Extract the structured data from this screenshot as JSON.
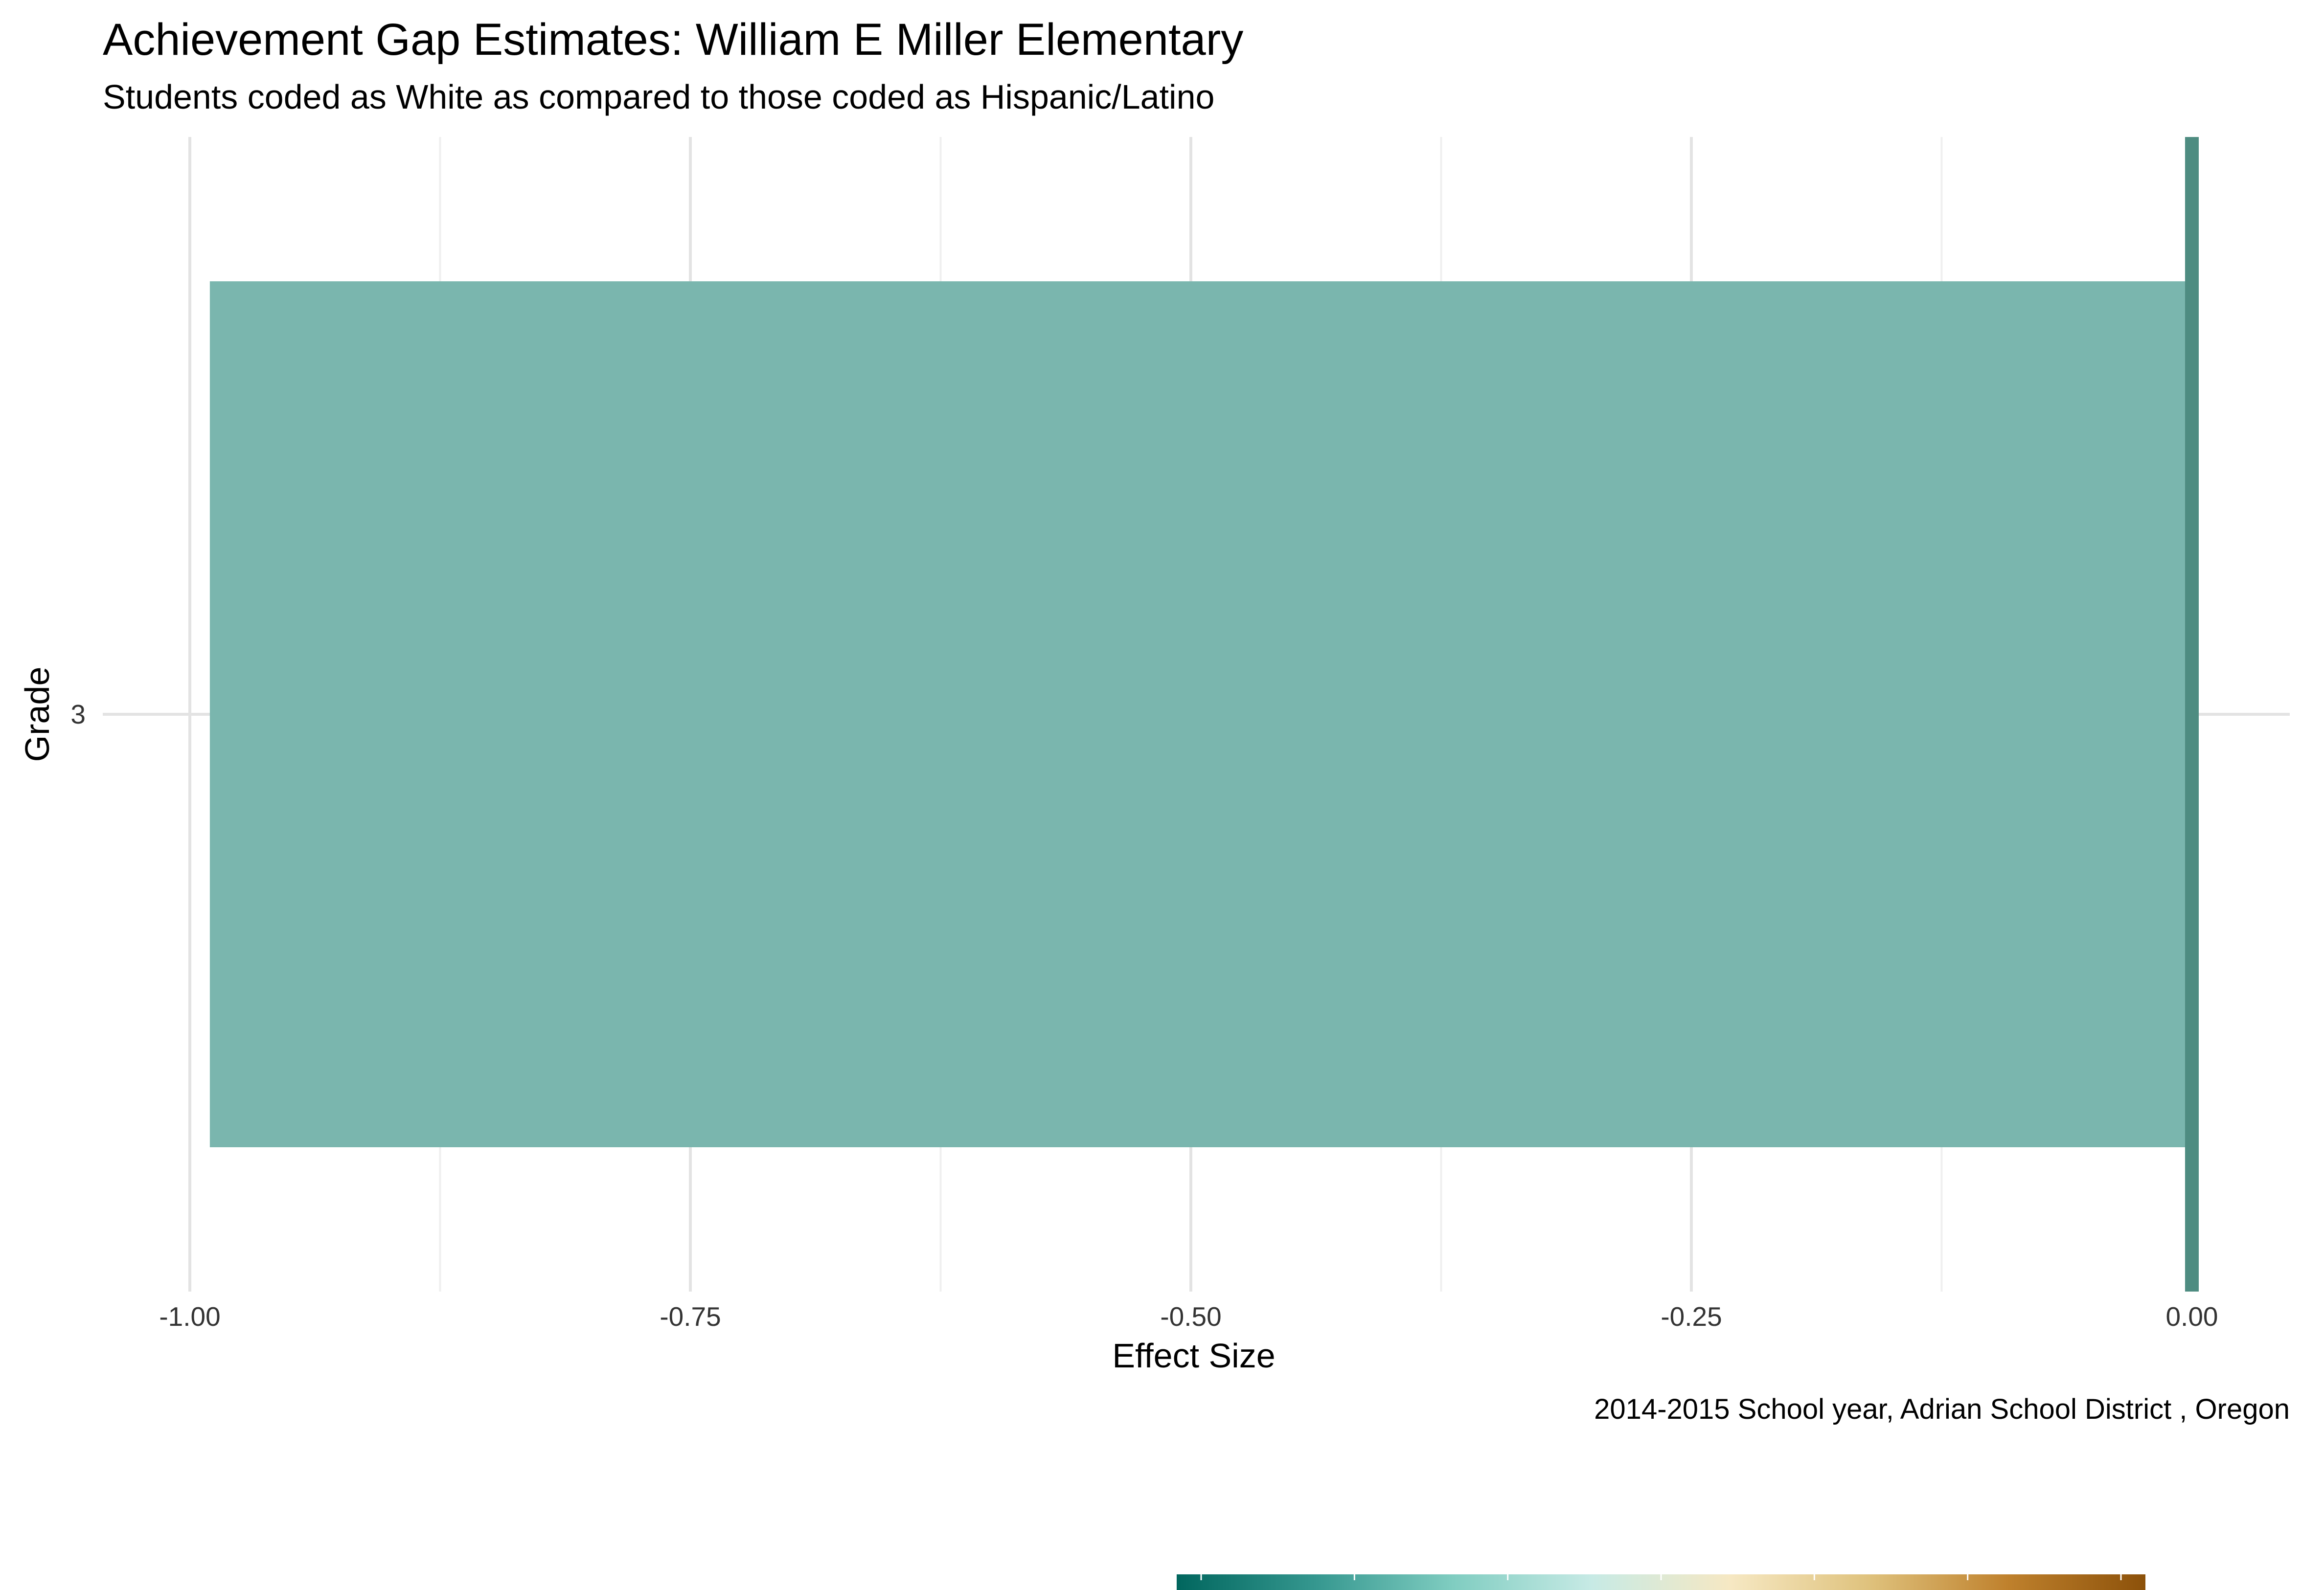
{
  "chart_data": {
    "type": "bar",
    "orientation": "horizontal",
    "title": "Achievement Gap Estimates: William E Miller Elementary",
    "subtitle": "Students coded as White as compared to those coded as Hispanic/Latino",
    "xlabel": "Effect Size",
    "ylabel": "Grade",
    "caption": "2014-2015 School year,  Adrian School District , Oregon",
    "categories": [
      "3"
    ],
    "values": [
      -0.99
    ],
    "xlim": [
      -1.0,
      0.0
    ],
    "x_ticks": [
      -1.0,
      -0.75,
      -0.5,
      -0.25,
      0.0
    ],
    "x_tick_labels": [
      "-1.00",
      "-0.75",
      "-0.50",
      "-0.25",
      "0.00"
    ],
    "reference_line": 0,
    "grid": true,
    "legend": "bottom",
    "colors": {
      "bar": "#7ab6ae",
      "reference_line": "#4e8c81",
      "colorbar": [
        "#01665e",
        "#35978f",
        "#80cdc1",
        "#c7eae5",
        "#f6e8c3",
        "#dfc27d",
        "#bf812d",
        "#8c510a"
      ]
    }
  }
}
